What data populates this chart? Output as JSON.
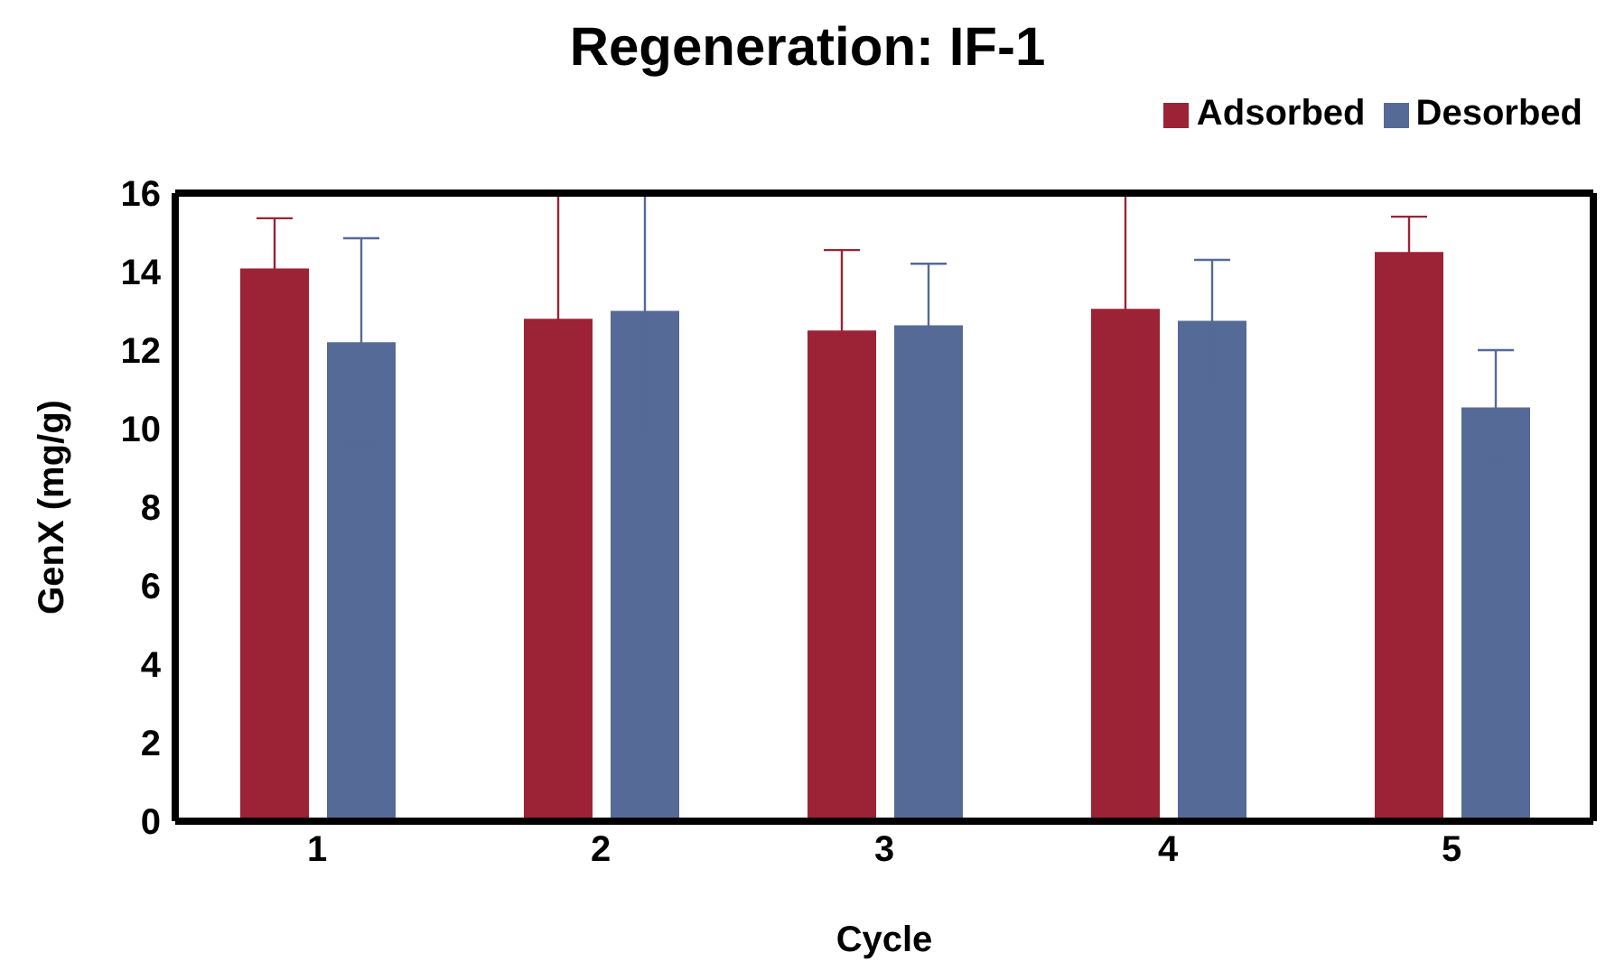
{
  "chart_data": {
    "type": "bar",
    "title": "Regeneration: IF-1",
    "xlabel": "Cycle",
    "ylabel": "GenX (mg/g)",
    "categories": [
      "1",
      "2",
      "3",
      "4",
      "5"
    ],
    "series": [
      {
        "name": "Adsorbed",
        "color": "#9b2335",
        "values": [
          14.08,
          12.8,
          12.5,
          13.05,
          14.5
        ],
        "errors": [
          1.28,
          3.16,
          2.05,
          2.95,
          0.9
        ]
      },
      {
        "name": "Desorbed",
        "color": "#556a96",
        "values": [
          12.2,
          13.0,
          12.63,
          12.75,
          10.54
        ],
        "errors": [
          2.65,
          3.0,
          1.57,
          1.55,
          1.46
        ]
      }
    ],
    "ylim": [
      0,
      16
    ],
    "yticks": [
      0,
      2,
      4,
      6,
      8,
      10,
      12,
      14,
      16
    ],
    "grid": false,
    "legend": "top right"
  }
}
